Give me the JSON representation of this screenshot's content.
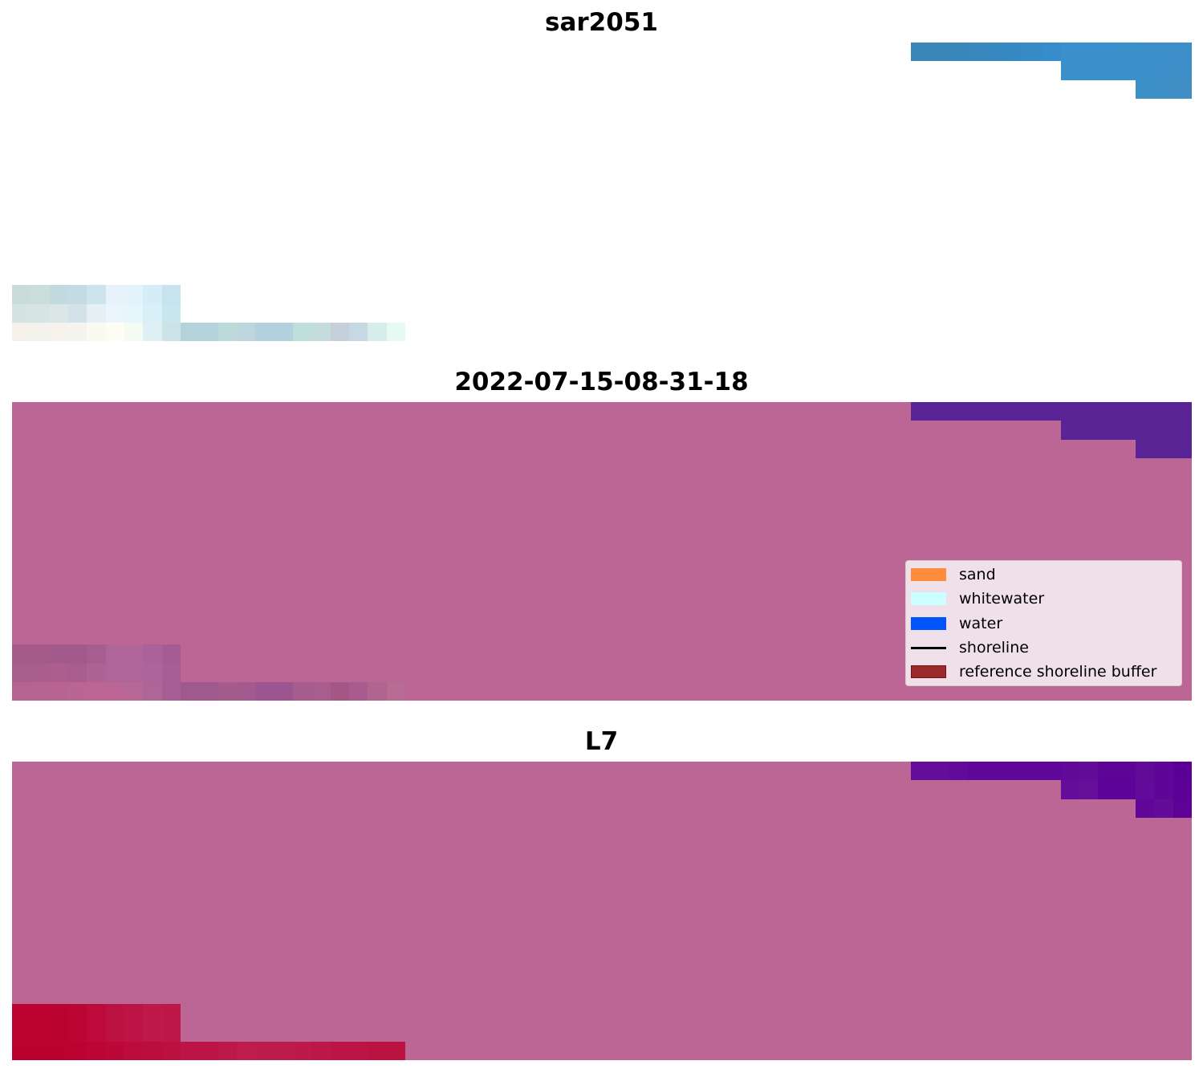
{
  "chart_data": {
    "type": "heatmap",
    "grid": {
      "rows": 16,
      "cols": 63
    },
    "panels": [
      {
        "title": "sar2051",
        "background": "#ffffff",
        "patches": [
          {
            "row": 0,
            "col": 48,
            "colors": [
              "#3a86b8",
              "#3a86b8",
              "#3887ba",
              "#3888bd",
              "#3888c0",
              "#3789c3",
              "#368ac6",
              "#378dcb",
              "#3a8fcd",
              "#3a90cc",
              "#3a90cc",
              "#3a90cb",
              "#3a8fca",
              "#3a8fca",
              "#3b8ec8"
            ]
          },
          {
            "row": 1,
            "col": 56,
            "colors": [
              "#3a90c8",
              "#3a90c8",
              "#3a91c9",
              "#3a91ca",
              "#3b90ca",
              "#3c8fc8",
              "#3d8ec6"
            ]
          },
          {
            "row": 2,
            "col": 60,
            "colors": [
              "#3c90c8",
              "#3e8fc6",
              "#408ec4"
            ]
          },
          {
            "row": 13,
            "col": 0,
            "colors": [
              "#c9dcd9",
              "#cadedb",
              "#c2d9e0",
              "#c5dbe3",
              "#cde4ee",
              "#e8f2fb",
              "#e4f3fb",
              "#d5edf8",
              "#c6e3ee"
            ]
          },
          {
            "row": 14,
            "col": 0,
            "colors": [
              "#d5e3e2",
              "#d6e4e3",
              "#dbe6e6",
              "#d2e2e8",
              "#e6eff3",
              "#eaf6fc",
              "#e6f6fc",
              "#d9f0f8",
              "#c9e6ee"
            ]
          },
          {
            "row": 15,
            "col": 0,
            "colors": [
              "#f3f1ea",
              "#f4f2ec",
              "#f5f3ec",
              "#f4f3ed",
              "#fbfaf0",
              "#fdfdf3",
              "#f5fbf3",
              "#dff0f5",
              "#cbe2e8",
              "#b5d3da",
              "#b5d3da",
              "#bcdad9",
              "#bdd6de",
              "#b3d0de",
              "#b3d0de",
              "#bfe0da",
              "#c4dcdc",
              "#c6d0da",
              "#c6d8e4",
              "#d5eeea",
              "#e6f9f3"
            ]
          }
        ]
      },
      {
        "title": "2022-07-15-08-31-18",
        "background": "#bc6696",
        "patches": [
          {
            "row": 0,
            "col": 48,
            "colors": [
              "#5a2397",
              "#5a2397",
              "#5a2397",
              "#5a2397",
              "#5a2397",
              "#5a2397",
              "#5a2397",
              "#5a2397",
              "#5b2496",
              "#5b2496",
              "#5b2496",
              "#5b2496",
              "#5b2496",
              "#5b2496",
              "#5b2496"
            ]
          },
          {
            "row": 1,
            "col": 56,
            "colors": [
              "#5b2496",
              "#5b2496",
              "#5b2496",
              "#5b2496",
              "#5b2496",
              "#5b2496",
              "#5b2496"
            ]
          },
          {
            "row": 2,
            "col": 60,
            "colors": [
              "#5b2496",
              "#5b2496",
              "#5b2496"
            ]
          },
          {
            "row": 13,
            "col": 0,
            "colors": [
              "#a55a8a",
              "#a55a8a",
              "#a2598b",
              "#a3598c",
              "#a65d90",
              "#b0659a",
              "#b0659b",
              "#ab629b",
              "#a35c94"
            ]
          },
          {
            "row": 14,
            "col": 0,
            "colors": [
              "#a95d8d",
              "#aa5e8d",
              "#ac5f8f",
              "#a95c8e",
              "#ae6296",
              "#b0659a",
              "#b0659a",
              "#ad649b",
              "#a65e96"
            ]
          },
          {
            "row": 15,
            "col": 0,
            "colors": [
              "#b5648f",
              "#b5648f",
              "#b86490",
              "#b96692",
              "#bb6694",
              "#bc6696",
              "#b86896",
              "#ae6598",
              "#a75e94",
              "#9e5a8d",
              "#9e5a8d",
              "#a45b8d",
              "#a45a8e",
              "#9b5590",
              "#9b5590",
              "#a65c8e",
              "#a75d8d",
              "#a45785",
              "#a85b8e",
              "#b0658f",
              "#b86c94"
            ]
          }
        ],
        "legend": {
          "placement": "lower right",
          "background": "#f0e0ea",
          "items": [
            {
              "label": "sand",
              "color": "#ff8c3c",
              "kind": "patch"
            },
            {
              "label": "whitewater",
              "color": "#ccffff",
              "kind": "patch"
            },
            {
              "label": "water",
              "color": "#0055ff",
              "kind": "patch"
            },
            {
              "label": "shoreline",
              "color": "#000000",
              "kind": "line"
            },
            {
              "label": "reference shoreline buffer",
              "color": "#9b2a2f",
              "kind": "patch"
            }
          ]
        }
      },
      {
        "title": "L7",
        "background": "#bc6696",
        "patches": [
          {
            "row": 0,
            "col": 48,
            "colors": [
              "#650d9b",
              "#650d9b",
              "#620a9a",
              "#5f0799",
              "#5f0799",
              "#5f0799",
              "#5f0799",
              "#5f0799",
              "#610a9a",
              "#620c9a",
              "#5e0598",
              "#5e0598",
              "#610b99",
              "#5f0698",
              "#5a0096"
            ]
          },
          {
            "row": 1,
            "col": 56,
            "colors": [
              "#650d9b",
              "#650f9b",
              "#5e0398",
              "#5d0398",
              "#630b9a",
              "#5f0698",
              "#5c0097"
            ]
          },
          {
            "row": 2,
            "col": 60,
            "colors": [
              "#600699",
              "#640c9a",
              "#5d0197"
            ]
          },
          {
            "row": 13,
            "col": 0,
            "colors": [
              "#bb0230",
              "#bb0230",
              "#bb0332",
              "#bb0533",
              "#bc0b3a",
              "#bc1241",
              "#bc1545",
              "#bd1a4a",
              "#bc1747"
            ]
          },
          {
            "row": 14,
            "col": 0,
            "colors": [
              "#bb0230",
              "#bb0230",
              "#bb0332",
              "#bb0533",
              "#bc0b3a",
              "#bc1241",
              "#bc1545",
              "#bd1a4a",
              "#bc1747"
            ]
          },
          {
            "row": 15,
            "col": 0,
            "colors": [
              "#bc0030",
              "#bc0030",
              "#bc0030",
              "#bc0231",
              "#bc0534",
              "#bc0838",
              "#bc0c3c",
              "#bc0e3e",
              "#bc1040",
              "#bc1444",
              "#bc1444",
              "#bc1949",
              "#bd1c4c",
              "#bc1c4c",
              "#bc1c4c",
              "#bd1a4a",
              "#bd1748",
              "#bc1444",
              "#bc1444",
              "#bc1242",
              "#bc1242"
            ]
          }
        ]
      }
    ]
  }
}
